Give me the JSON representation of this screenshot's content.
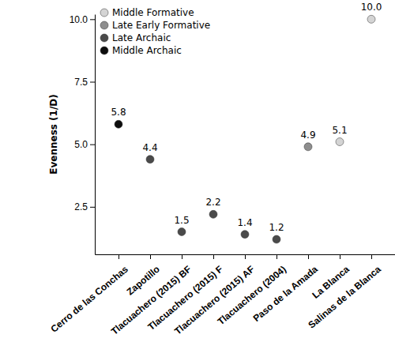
{
  "chart_data": {
    "type": "scatter",
    "y_label": "Evenness (1/D)",
    "categories": [
      "Cerro de las Conchas",
      "Zapotillo",
      "Tlacuachero (2015) BF",
      "Tlacuachero (2015) F",
      "Tlacuachero (2015) AF",
      "Tlacuachero (2004)",
      "Paso de la Amada",
      "La Blanca",
      "Salinas de la Blanca"
    ],
    "series": [
      {
        "name": "Middle Formative",
        "color": "#d4d4d4",
        "values": [
          null,
          null,
          null,
          null,
          null,
          null,
          null,
          5.1,
          10.0
        ],
        "value_labels": [
          null,
          null,
          null,
          null,
          null,
          null,
          null,
          "5.1",
          "10.0"
        ]
      },
      {
        "name": "Late Early Formative",
        "color": "#8e8e8e",
        "values": [
          null,
          null,
          null,
          null,
          null,
          null,
          4.9,
          null,
          null
        ],
        "value_labels": [
          null,
          null,
          null,
          null,
          null,
          null,
          "4.9",
          null,
          null
        ]
      },
      {
        "name": "Late Archaic",
        "color": "#4a4a4a",
        "values": [
          null,
          4.4,
          1.5,
          2.2,
          1.4,
          1.2,
          null,
          null,
          null
        ],
        "value_labels": [
          null,
          "4.4",
          "1.5",
          "2.2",
          "1.4",
          "1.2",
          null,
          null,
          null
        ]
      },
      {
        "name": "Middle Archaic",
        "color": "#0d0d0d",
        "values": [
          5.8,
          null,
          null,
          null,
          null,
          null,
          null,
          null,
          null
        ],
        "value_labels": [
          "5.8",
          null,
          null,
          null,
          null,
          null,
          null,
          null,
          null
        ]
      }
    ],
    "ylim": [
      0.6,
      10.2
    ],
    "yticks": [
      2.5,
      {
        "value": 5,
        "label": "5.0"
      },
      7.5,
      {
        "value": 10,
        "label": "10.0"
      }
    ],
    "grid": false,
    "legend": "top-left",
    "data_labels": true,
    "marker": "circle"
  }
}
